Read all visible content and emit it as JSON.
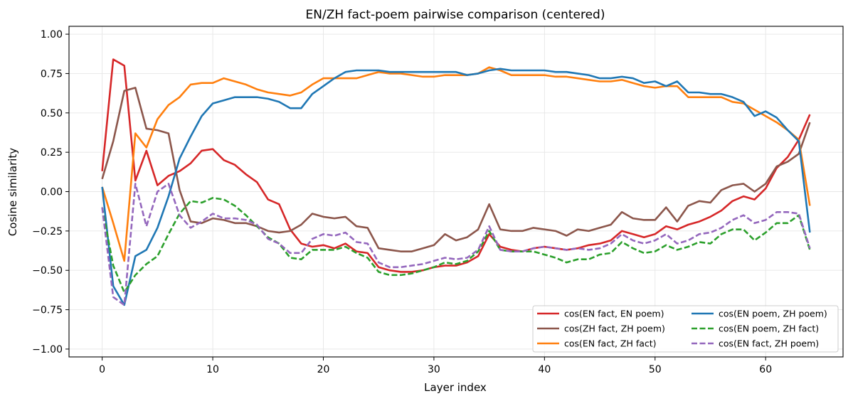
{
  "chart_data": {
    "type": "line",
    "title": "EN/ZH fact-poem pairwise comparison (centered)",
    "xlabel": "Layer index",
    "ylabel": "Cosine similarity",
    "xlim": [
      -3,
      67
    ],
    "ylim": [
      -1.05,
      1.05
    ],
    "xticks": [
      0,
      10,
      20,
      30,
      40,
      50,
      60
    ],
    "yticks": [
      -1.0,
      -0.75,
      -0.5,
      -0.25,
      0.0,
      0.25,
      0.5,
      0.75,
      1.0
    ],
    "ytick_labels": [
      "−1.00",
      "−0.75",
      "−0.50",
      "−0.25",
      "0.00",
      "0.25",
      "0.50",
      "0.75",
      "1.00"
    ],
    "grid": true,
    "legend_position": "lower-right",
    "legend_columns": 2,
    "x": [
      0,
      1,
      2,
      3,
      4,
      5,
      6,
      7,
      8,
      9,
      10,
      11,
      12,
      13,
      14,
      15,
      16,
      17,
      18,
      19,
      20,
      21,
      22,
      23,
      24,
      25,
      26,
      27,
      28,
      29,
      30,
      31,
      32,
      33,
      34,
      35,
      36,
      37,
      38,
      39,
      40,
      41,
      42,
      43,
      44,
      45,
      46,
      47,
      48,
      49,
      50,
      51,
      52,
      53,
      54,
      55,
      56,
      57,
      58,
      59,
      60,
      61,
      62,
      63,
      64
    ],
    "series": [
      {
        "name": "cos(EN fact, EN poem)",
        "color": "#d62728",
        "dash": "solid",
        "values": [
          0.13,
          0.84,
          0.8,
          0.07,
          0.26,
          0.04,
          0.1,
          0.13,
          0.18,
          0.26,
          0.27,
          0.2,
          0.17,
          0.11,
          0.06,
          -0.05,
          -0.08,
          -0.24,
          -0.33,
          -0.35,
          -0.34,
          -0.36,
          -0.33,
          -0.38,
          -0.39,
          -0.48,
          -0.5,
          -0.51,
          -0.51,
          -0.5,
          -0.48,
          -0.47,
          -0.47,
          -0.45,
          -0.41,
          -0.27,
          -0.35,
          -0.37,
          -0.38,
          -0.36,
          -0.35,
          -0.36,
          -0.37,
          -0.36,
          -0.34,
          -0.33,
          -0.31,
          -0.25,
          -0.27,
          -0.29,
          -0.27,
          -0.22,
          -0.24,
          -0.21,
          -0.19,
          -0.16,
          -0.12,
          -0.06,
          -0.03,
          -0.05,
          0.02,
          0.15,
          0.22,
          0.33,
          0.49
        ]
      },
      {
        "name": "cos(ZH fact, ZH poem)",
        "color": "#8c564b",
        "dash": "solid",
        "values": [
          0.08,
          0.32,
          0.64,
          0.66,
          0.4,
          0.39,
          0.37,
          0.01,
          -0.19,
          -0.2,
          -0.17,
          -0.18,
          -0.2,
          -0.2,
          -0.22,
          -0.25,
          -0.26,
          -0.25,
          -0.21,
          -0.14,
          -0.16,
          -0.17,
          -0.16,
          -0.22,
          -0.23,
          -0.36,
          -0.37,
          -0.38,
          -0.38,
          -0.36,
          -0.34,
          -0.27,
          -0.31,
          -0.29,
          -0.24,
          -0.08,
          -0.24,
          -0.25,
          -0.25,
          -0.23,
          -0.24,
          -0.25,
          -0.28,
          -0.24,
          -0.25,
          -0.23,
          -0.21,
          -0.13,
          -0.17,
          -0.18,
          -0.18,
          -0.1,
          -0.19,
          -0.09,
          -0.06,
          -0.07,
          0.01,
          0.04,
          0.05,
          0.0,
          0.05,
          0.16,
          0.19,
          0.24,
          0.44
        ]
      },
      {
        "name": "cos(EN fact, ZH fact)",
        "color": "#ff7f0e",
        "dash": "solid",
        "values": [
          0.03,
          -0.2,
          -0.44,
          0.37,
          0.28,
          0.46,
          0.55,
          0.6,
          0.68,
          0.69,
          0.69,
          0.72,
          0.7,
          0.68,
          0.65,
          0.63,
          0.62,
          0.61,
          0.63,
          0.68,
          0.72,
          0.72,
          0.72,
          0.72,
          0.74,
          0.76,
          0.75,
          0.75,
          0.74,
          0.73,
          0.73,
          0.74,
          0.74,
          0.74,
          0.75,
          0.79,
          0.77,
          0.74,
          0.74,
          0.74,
          0.74,
          0.73,
          0.73,
          0.72,
          0.71,
          0.7,
          0.7,
          0.71,
          0.69,
          0.67,
          0.66,
          0.67,
          0.67,
          0.6,
          0.6,
          0.6,
          0.6,
          0.57,
          0.56,
          0.52,
          0.48,
          0.44,
          0.39,
          0.33,
          -0.09
        ]
      },
      {
        "name": "cos(EN poem, ZH poem)",
        "color": "#1f77b4",
        "dash": "solid",
        "values": [
          0.03,
          -0.6,
          -0.72,
          -0.41,
          -0.37,
          -0.23,
          -0.03,
          0.21,
          0.35,
          0.48,
          0.56,
          0.58,
          0.6,
          0.6,
          0.6,
          0.59,
          0.57,
          0.53,
          0.53,
          0.62,
          0.67,
          0.72,
          0.76,
          0.77,
          0.77,
          0.77,
          0.76,
          0.76,
          0.76,
          0.76,
          0.76,
          0.76,
          0.76,
          0.74,
          0.75,
          0.77,
          0.78,
          0.77,
          0.77,
          0.77,
          0.77,
          0.76,
          0.76,
          0.75,
          0.74,
          0.72,
          0.72,
          0.73,
          0.72,
          0.69,
          0.7,
          0.67,
          0.7,
          0.63,
          0.63,
          0.62,
          0.62,
          0.6,
          0.57,
          0.48,
          0.51,
          0.47,
          0.39,
          0.32,
          -0.26
        ]
      },
      {
        "name": "cos(EN poem, ZH fact)",
        "color": "#2ca02c",
        "dash": "dashed",
        "values": [
          -0.1,
          -0.47,
          -0.64,
          -0.53,
          -0.46,
          -0.41,
          -0.27,
          -0.14,
          -0.06,
          -0.07,
          -0.04,
          -0.05,
          -0.09,
          -0.15,
          -0.22,
          -0.29,
          -0.33,
          -0.42,
          -0.43,
          -0.37,
          -0.37,
          -0.37,
          -0.35,
          -0.39,
          -0.42,
          -0.51,
          -0.53,
          -0.53,
          -0.52,
          -0.5,
          -0.48,
          -0.45,
          -0.46,
          -0.44,
          -0.38,
          -0.25,
          -0.37,
          -0.38,
          -0.38,
          -0.38,
          -0.4,
          -0.42,
          -0.45,
          -0.43,
          -0.43,
          -0.4,
          -0.39,
          -0.32,
          -0.36,
          -0.39,
          -0.38,
          -0.34,
          -0.37,
          -0.35,
          -0.32,
          -0.33,
          -0.27,
          -0.24,
          -0.24,
          -0.31,
          -0.26,
          -0.2,
          -0.2,
          -0.15,
          -0.37
        ]
      },
      {
        "name": "cos(EN fact, ZH poem)",
        "color": "#9467bd",
        "dash": "dashed",
        "values": [
          -0.1,
          -0.67,
          -0.72,
          0.05,
          -0.22,
          0.0,
          0.05,
          -0.15,
          -0.23,
          -0.19,
          -0.14,
          -0.17,
          -0.17,
          -0.18,
          -0.21,
          -0.3,
          -0.33,
          -0.39,
          -0.39,
          -0.3,
          -0.27,
          -0.28,
          -0.26,
          -0.32,
          -0.33,
          -0.45,
          -0.48,
          -0.48,
          -0.47,
          -0.46,
          -0.44,
          -0.42,
          -0.43,
          -0.42,
          -0.37,
          -0.22,
          -0.37,
          -0.38,
          -0.38,
          -0.36,
          -0.35,
          -0.36,
          -0.37,
          -0.36,
          -0.37,
          -0.36,
          -0.33,
          -0.27,
          -0.31,
          -0.33,
          -0.31,
          -0.27,
          -0.33,
          -0.31,
          -0.27,
          -0.26,
          -0.23,
          -0.18,
          -0.15,
          -0.2,
          -0.18,
          -0.13,
          -0.13,
          -0.14,
          -0.36
        ]
      }
    ]
  }
}
